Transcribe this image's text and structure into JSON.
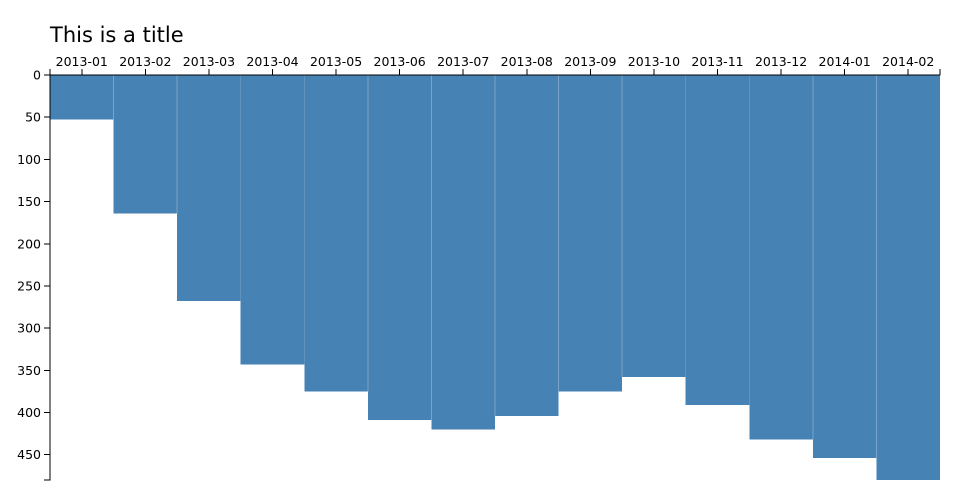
{
  "chart_data": {
    "type": "bar",
    "title": "This is a title",
    "xlabel": "",
    "ylabel": "",
    "x_axis_position": "top",
    "y_axis_inverted": true,
    "grid": false,
    "color": "#4682b4",
    "categories": [
      "2013-01",
      "2013-02",
      "2013-03",
      "2013-04",
      "2013-05",
      "2013-06",
      "2013-07",
      "2013-08",
      "2013-09",
      "2013-10",
      "2013-11",
      "2013-12",
      "2014-01",
      "2014-02"
    ],
    "values": [
      53,
      164,
      268,
      343,
      375,
      409,
      420,
      404,
      375,
      358,
      391,
      432,
      454,
      480
    ],
    "ylim": [
      0,
      480
    ],
    "yticks": [
      0,
      50,
      100,
      150,
      200,
      250,
      300,
      350,
      400,
      450
    ]
  }
}
